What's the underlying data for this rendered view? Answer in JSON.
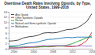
{
  "chart_data": {
    "type": "line",
    "title": "Overdose Death Rates Involving Opioids, by Type, United States, 1999-2016",
    "x": [
      1999,
      2000,
      2001,
      2002,
      2003,
      2004,
      2005,
      2006,
      2007,
      2008,
      2009,
      2010,
      2011,
      2012,
      2013,
      2014,
      2015,
      2016
    ],
    "xlim": [
      1999,
      2016
    ],
    "xticks": [
      2000,
      2004,
      2008,
      2012,
      2016
    ],
    "ylim": [
      0,
      14
    ],
    "yticks": [
      0,
      2,
      4,
      6,
      8,
      10,
      12,
      14
    ],
    "grid": true,
    "legend": "upper left",
    "series": [
      {
        "name": "Any Opioid",
        "color": "#333333",
        "values": [
          2.9,
          3.0,
          3.3,
          4.1,
          4.5,
          4.7,
          5.1,
          5.9,
          6.1,
          6.0,
          6.2,
          6.8,
          7.3,
          7.4,
          7.9,
          9.0,
          10.4,
          13.3
        ]
      },
      {
        "name": "Other Synthetic Opioids",
        "color": "#d62728",
        "values": [
          0.3,
          0.3,
          0.3,
          0.4,
          0.5,
          0.6,
          0.6,
          0.9,
          0.7,
          0.8,
          1.0,
          1.0,
          0.8,
          0.8,
          1.0,
          1.8,
          3.1,
          6.2
        ]
      },
      {
        "name": "Heroin",
        "color": "#2ca02c",
        "values": [
          0.7,
          0.7,
          0.6,
          0.7,
          0.7,
          0.6,
          0.7,
          0.7,
          0.8,
          1.0,
          1.1,
          1.0,
          1.4,
          1.9,
          2.7,
          3.4,
          4.1,
          4.9
        ]
      },
      {
        "name": "Natural and Semi-synthetic Opioids",
        "color": "#1f77b4",
        "values": [
          1.0,
          1.1,
          1.3,
          1.7,
          2.1,
          2.3,
          2.6,
          3.1,
          3.5,
          3.6,
          3.8,
          4.1,
          4.3,
          4.2,
          4.4,
          4.4,
          4.4,
          4.4
        ]
      },
      {
        "name": "Methadone",
        "color": "#9467bd",
        "values": [
          0.3,
          0.3,
          0.4,
          0.6,
          0.7,
          0.8,
          1.0,
          1.2,
          1.2,
          1.2,
          1.2,
          1.2,
          1.2,
          1.0,
          1.0,
          1.1,
          1.0,
          1.0
        ]
      }
    ]
  }
}
